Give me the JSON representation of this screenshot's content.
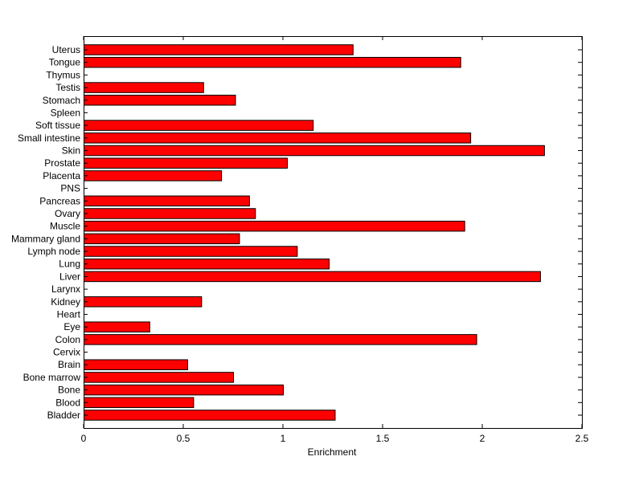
{
  "chart_data": {
    "type": "bar",
    "orientation": "horizontal",
    "title": "",
    "xlabel": "Enrichment",
    "ylabel": "",
    "xlim": [
      0,
      2.5
    ],
    "xticks": [
      "0",
      "0.5",
      "1",
      "1.5",
      "2",
      "2.5"
    ],
    "xtick_values": [
      0,
      0.5,
      1,
      1.5,
      2,
      2.5
    ],
    "grid": false,
    "legend": "none",
    "bar_color": "#ff0000",
    "bar_edge_color": "#000000",
    "categories": [
      "Bladder",
      "Blood",
      "Bone",
      "Bone marrow",
      "Brain",
      "Cervix",
      "Colon",
      "Eye",
      "Heart",
      "Kidney",
      "Larynx",
      "Liver",
      "Lung",
      "Lymph node",
      "Mammary gland",
      "Muscle",
      "Ovary",
      "Pancreas",
      "PNS",
      "Placenta",
      "Prostate",
      "Skin",
      "Small intestine",
      "Soft tissue",
      "Spleen",
      "Stomach",
      "Testis",
      "Thymus",
      "Tongue",
      "Uterus"
    ],
    "values": [
      1.26,
      0.55,
      1.0,
      0.75,
      0.52,
      0,
      1.97,
      0.33,
      0,
      0.59,
      0,
      2.29,
      1.23,
      1.07,
      0.78,
      1.91,
      0.86,
      0.83,
      0,
      0.69,
      1.02,
      2.31,
      1.94,
      1.15,
      0,
      0.76,
      0.6,
      0,
      1.89,
      1.35
    ]
  }
}
